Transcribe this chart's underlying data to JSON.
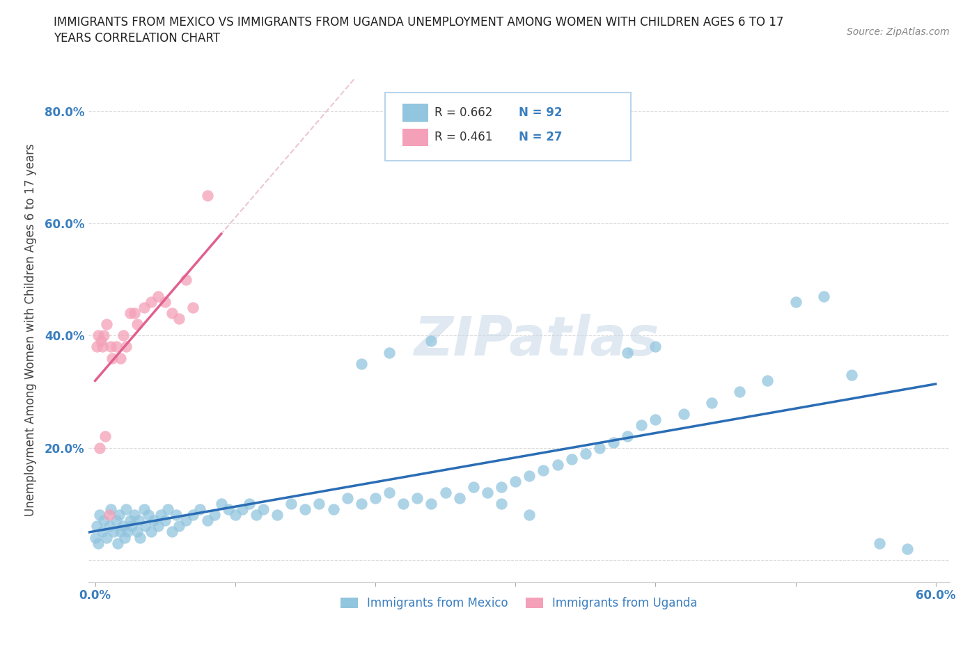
{
  "title_line1": "IMMIGRANTS FROM MEXICO VS IMMIGRANTS FROM UGANDA UNEMPLOYMENT AMONG WOMEN WITH CHILDREN AGES 6 TO 17",
  "title_line2": "YEARS CORRELATION CHART",
  "source_text": "Source: ZipAtlas.com",
  "ylabel": "Unemployment Among Women with Children Ages 6 to 17 years",
  "xlim": [
    -0.005,
    0.61
  ],
  "ylim": [
    -0.04,
    0.86
  ],
  "R_mexico": 0.662,
  "N_mexico": 92,
  "R_uganda": 0.461,
  "N_uganda": 27,
  "color_mexico": "#92c5de",
  "color_uganda": "#f4a0b8",
  "line_color_mexico": "#2a6db5",
  "line_color_uganda": "#e06090",
  "legend_label_mexico": "Immigrants from Mexico",
  "legend_label_uganda": "Immigrants from Uganda",
  "mexico_x": [
    0.0,
    0.001,
    0.002,
    0.003,
    0.005,
    0.006,
    0.008,
    0.01,
    0.011,
    0.013,
    0.015,
    0.016,
    0.017,
    0.018,
    0.02,
    0.021,
    0.022,
    0.023,
    0.025,
    0.026,
    0.028,
    0.03,
    0.031,
    0.032,
    0.035,
    0.036,
    0.038,
    0.04,
    0.042,
    0.045,
    0.047,
    0.05,
    0.052,
    0.055,
    0.058,
    0.06,
    0.065,
    0.07,
    0.075,
    0.08,
    0.085,
    0.09,
    0.095,
    0.1,
    0.105,
    0.11,
    0.115,
    0.12,
    0.13,
    0.14,
    0.15,
    0.16,
    0.17,
    0.18,
    0.19,
    0.2,
    0.21,
    0.22,
    0.23,
    0.24,
    0.25,
    0.26,
    0.27,
    0.28,
    0.29,
    0.3,
    0.31,
    0.32,
    0.33,
    0.34,
    0.35,
    0.36,
    0.37,
    0.38,
    0.39,
    0.4,
    0.42,
    0.44,
    0.46,
    0.48,
    0.5,
    0.52,
    0.54,
    0.56,
    0.58,
    0.38,
    0.4,
    0.19,
    0.21,
    0.29,
    0.31,
    0.24
  ],
  "mexico_y": [
    0.04,
    0.06,
    0.03,
    0.08,
    0.05,
    0.07,
    0.04,
    0.06,
    0.09,
    0.05,
    0.07,
    0.03,
    0.08,
    0.05,
    0.06,
    0.04,
    0.09,
    0.05,
    0.07,
    0.06,
    0.08,
    0.05,
    0.07,
    0.04,
    0.09,
    0.06,
    0.08,
    0.05,
    0.07,
    0.06,
    0.08,
    0.07,
    0.09,
    0.05,
    0.08,
    0.06,
    0.07,
    0.08,
    0.09,
    0.07,
    0.08,
    0.1,
    0.09,
    0.08,
    0.09,
    0.1,
    0.08,
    0.09,
    0.08,
    0.1,
    0.09,
    0.1,
    0.09,
    0.11,
    0.1,
    0.11,
    0.12,
    0.1,
    0.11,
    0.1,
    0.12,
    0.11,
    0.13,
    0.12,
    0.13,
    0.14,
    0.15,
    0.16,
    0.17,
    0.18,
    0.19,
    0.2,
    0.21,
    0.22,
    0.24,
    0.25,
    0.26,
    0.28,
    0.3,
    0.32,
    0.46,
    0.47,
    0.33,
    0.03,
    0.02,
    0.37,
    0.38,
    0.35,
    0.37,
    0.1,
    0.08,
    0.39
  ],
  "uganda_x": [
    0.001,
    0.002,
    0.003,
    0.004,
    0.005,
    0.006,
    0.007,
    0.008,
    0.01,
    0.011,
    0.012,
    0.015,
    0.018,
    0.02,
    0.022,
    0.025,
    0.028,
    0.03,
    0.035,
    0.04,
    0.045,
    0.05,
    0.055,
    0.06,
    0.065,
    0.07,
    0.08
  ],
  "uganda_y": [
    0.38,
    0.4,
    0.2,
    0.39,
    0.38,
    0.4,
    0.22,
    0.42,
    0.08,
    0.38,
    0.36,
    0.38,
    0.36,
    0.4,
    0.38,
    0.44,
    0.44,
    0.42,
    0.45,
    0.46,
    0.47,
    0.46,
    0.44,
    0.43,
    0.5,
    0.45,
    0.65
  ]
}
